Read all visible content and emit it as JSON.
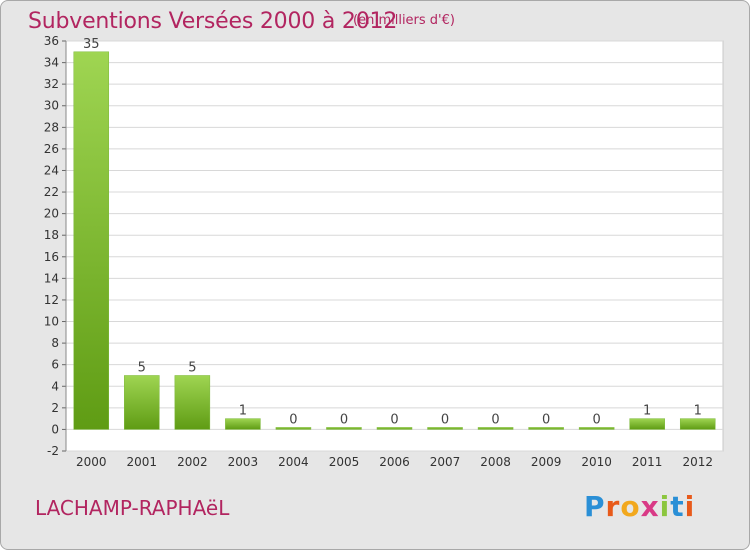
{
  "header": {
    "title": "Subventions Versées 2000 à 2012",
    "subtitle": "(en milliers d'€)"
  },
  "footer": {
    "commune": "LACHAMP-RAPHAëL",
    "logo": "Proxiti",
    "logo_letters": [
      {
        "ch": "P",
        "color": "#2a8fd6"
      },
      {
        "ch": "r",
        "color": "#e85a1a"
      },
      {
        "ch": "o",
        "color": "#f2a81d"
      },
      {
        "ch": "x",
        "color": "#d93a86"
      },
      {
        "ch": "i",
        "color": "#8cc63f"
      },
      {
        "ch": "t",
        "color": "#2a8fd6"
      },
      {
        "ch": "i",
        "color": "#e85a1a"
      }
    ]
  },
  "colors": {
    "accent": "#b22560",
    "bar_top": "#9fd552",
    "bar_bottom": "#5f9c14",
    "plot_bg": "#ffffff",
    "grid": "#d8d8d8"
  },
  "chart_data": {
    "type": "bar",
    "categories": [
      "2000",
      "2001",
      "2002",
      "2003",
      "2004",
      "2005",
      "2006",
      "2007",
      "2008",
      "2009",
      "2010",
      "2011",
      "2012"
    ],
    "values": [
      35,
      5,
      5,
      1,
      0,
      0,
      0,
      0,
      0,
      0,
      0,
      1,
      1
    ],
    "ylim": [
      -2,
      36
    ],
    "yticks": [
      -2,
      0,
      2,
      4,
      6,
      8,
      10,
      12,
      14,
      16,
      18,
      20,
      22,
      24,
      26,
      28,
      30,
      32,
      34,
      36
    ],
    "grid": true,
    "data_labels": true
  }
}
